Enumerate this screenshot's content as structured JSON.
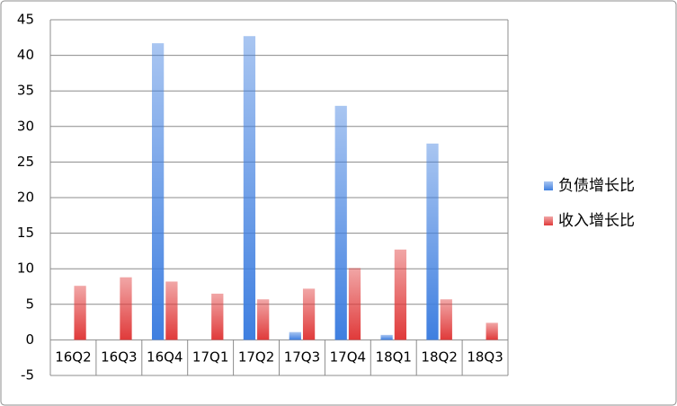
{
  "chart_data": {
    "type": "bar",
    "categories": [
      "16Q2",
      "16Q3",
      "16Q4",
      "17Q1",
      "17Q2",
      "17Q3",
      "17Q4",
      "18Q1",
      "18Q2",
      "18Q3"
    ],
    "series": [
      {
        "name": "负债增长比",
        "color": "#3f7fe0",
        "values": [
          0,
          0,
          41.7,
          0,
          42.7,
          1.1,
          32.9,
          0.7,
          27.6,
          0
        ]
      },
      {
        "name": "收入增长比",
        "color": "#e03a3a",
        "values": [
          7.6,
          8.8,
          8.2,
          6.5,
          5.7,
          7.2,
          10.1,
          12.7,
          5.7,
          2.4
        ]
      }
    ],
    "ylim": [
      -5,
      45
    ],
    "yticks": [
      -5,
      0,
      5,
      10,
      15,
      20,
      25,
      30,
      35,
      40,
      45
    ],
    "grid": true,
    "legend": "right"
  }
}
